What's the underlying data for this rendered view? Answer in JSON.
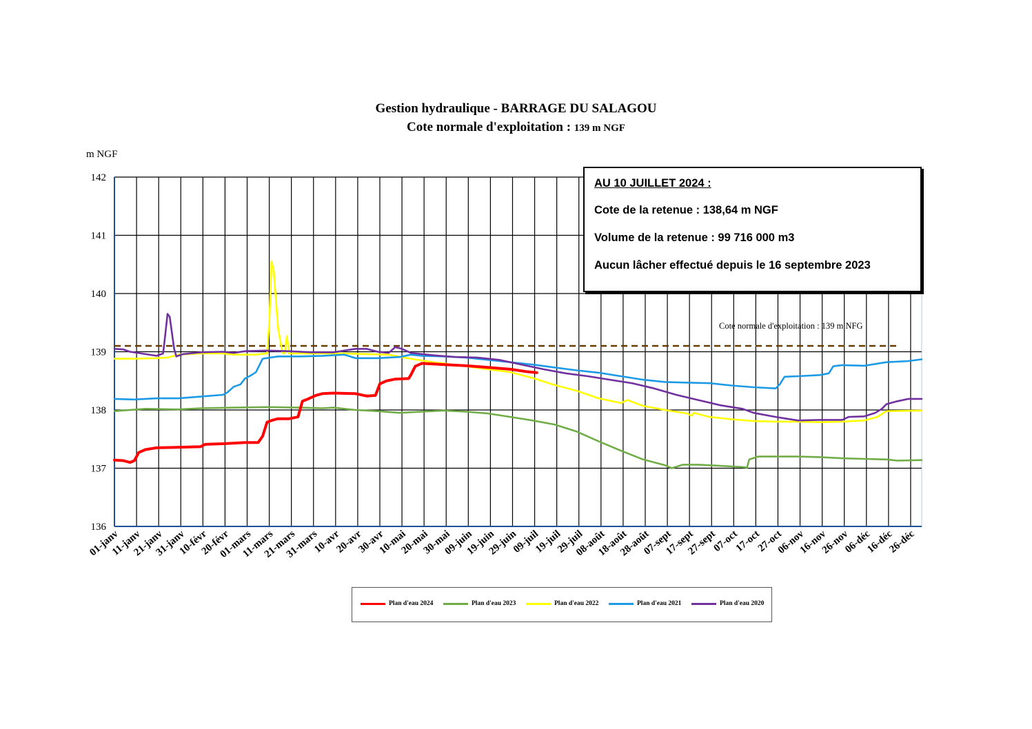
{
  "title": "Gestion hydraulique - BARRAGE DU SALAGOU",
  "subtitle_main": "Cote normale d'exploitation : ",
  "subtitle_unit": "139 m NGF",
  "info_box": {
    "heading": "AU 10 JUILLET 2024 :",
    "line1": "Cote de la retenue : 138,64 m NGF",
    "line2": "Volume de la retenue : 99 716 000 m3",
    "line3": "Aucun lâcher effectué depuis le 16 septembre 2023"
  },
  "chart_data": {
    "type": "line",
    "ylabel": "m NGF",
    "ylim": [
      136,
      142
    ],
    "yticks": [
      "136",
      "137",
      "138",
      "139",
      "140",
      "141",
      "142"
    ],
    "xlim": [
      1,
      366
    ],
    "grid": true,
    "legend_position": "bottom",
    "x_ticks": [
      {
        "day": 1,
        "label": "01-janv"
      },
      {
        "day": 11,
        "label": "11-janv"
      },
      {
        "day": 21,
        "label": "21-janv"
      },
      {
        "day": 31,
        "label": "31-janv"
      },
      {
        "day": 41,
        "label": "10-févr"
      },
      {
        "day": 51,
        "label": "20-févr"
      },
      {
        "day": 61,
        "label": "01-mars"
      },
      {
        "day": 71,
        "label": "11-mars"
      },
      {
        "day": 81,
        "label": "21-mars"
      },
      {
        "day": 91,
        "label": "31-mars"
      },
      {
        "day": 101,
        "label": "10-avr"
      },
      {
        "day": 111,
        "label": "20-avr"
      },
      {
        "day": 121,
        "label": "30-avr"
      },
      {
        "day": 131,
        "label": "10-mai"
      },
      {
        "day": 141,
        "label": "20-mai"
      },
      {
        "day": 151,
        "label": "30-mai"
      },
      {
        "day": 161,
        "label": "09-juin"
      },
      {
        "day": 171,
        "label": "19-juin"
      },
      {
        "day": 181,
        "label": "29-juin"
      },
      {
        "day": 191,
        "label": "09-juil"
      },
      {
        "day": 201,
        "label": "19-juil"
      },
      {
        "day": 211,
        "label": "29-juil"
      },
      {
        "day": 221,
        "label": "08-août"
      },
      {
        "day": 231,
        "label": "18-août"
      },
      {
        "day": 241,
        "label": "28-août"
      },
      {
        "day": 251,
        "label": "07-sept"
      },
      {
        "day": 261,
        "label": "17-sept"
      },
      {
        "day": 271,
        "label": "27-sept"
      },
      {
        "day": 281,
        "label": "07-oct"
      },
      {
        "day": 291,
        "label": "17-oct"
      },
      {
        "day": 301,
        "label": "27-oct"
      },
      {
        "day": 311,
        "label": "06-nov"
      },
      {
        "day": 321,
        "label": "16-nov"
      },
      {
        "day": 331,
        "label": "26-nov"
      },
      {
        "day": 341,
        "label": "06-déc"
      },
      {
        "day": 351,
        "label": "16-déc"
      },
      {
        "day": 361,
        "label": "26-déc"
      }
    ],
    "reference_line": {
      "y": 139.1,
      "label": "Cote normale d'exploitation : 139 m NFG",
      "color": "#6b3a00"
    },
    "series": [
      {
        "name": "Plan d'eau 2023",
        "color": "#70ad47",
        "points": [
          [
            1,
            137.98
          ],
          [
            15,
            138.02
          ],
          [
            30,
            138.01
          ],
          [
            40,
            138.03
          ],
          [
            55,
            138.04
          ],
          [
            70,
            138.05
          ],
          [
            85,
            138.04
          ],
          [
            95,
            138.03
          ],
          [
            100,
            138.04
          ],
          [
            105,
            138.02
          ],
          [
            110,
            138.0
          ],
          [
            120,
            137.98
          ],
          [
            130,
            137.95
          ],
          [
            140,
            137.97
          ],
          [
            150,
            137.99
          ],
          [
            160,
            137.97
          ],
          [
            170,
            137.94
          ],
          [
            180,
            137.88
          ],
          [
            190,
            137.82
          ],
          [
            200,
            137.75
          ],
          [
            210,
            137.63
          ],
          [
            220,
            137.46
          ],
          [
            230,
            137.3
          ],
          [
            240,
            137.15
          ],
          [
            250,
            137.05
          ],
          [
            253,
            137.0
          ],
          [
            258,
            137.06
          ],
          [
            265,
            137.06
          ],
          [
            275,
            137.04
          ],
          [
            285,
            137.02
          ],
          [
            287,
            137.01
          ],
          [
            288,
            137.15
          ],
          [
            292,
            137.2
          ],
          [
            300,
            137.2
          ],
          [
            310,
            137.2
          ],
          [
            320,
            137.19
          ],
          [
            330,
            137.17
          ],
          [
            340,
            137.16
          ],
          [
            350,
            137.15
          ],
          [
            355,
            137.13
          ],
          [
            366,
            137.14
          ]
        ]
      },
      {
        "name": "Plan d'eau 2022",
        "color": "#ffff00",
        "points": [
          [
            1,
            138.88
          ],
          [
            10,
            138.88
          ],
          [
            20,
            138.89
          ],
          [
            25,
            138.9
          ],
          [
            30,
            138.95
          ],
          [
            40,
            138.97
          ],
          [
            50,
            138.97
          ],
          [
            55,
            138.95
          ],
          [
            65,
            138.95
          ],
          [
            70,
            138.97
          ],
          [
            71,
            139.5
          ],
          [
            72,
            140.55
          ],
          [
            73,
            140.4
          ],
          [
            75,
            139.4
          ],
          [
            77,
            138.98
          ],
          [
            78,
            138.97
          ],
          [
            79,
            139.27
          ],
          [
            80,
            138.97
          ],
          [
            85,
            138.97
          ],
          [
            95,
            138.97
          ],
          [
            105,
            138.97
          ],
          [
            115,
            138.96
          ],
          [
            125,
            138.95
          ],
          [
            135,
            138.88
          ],
          [
            145,
            138.82
          ],
          [
            150,
            138.8
          ],
          [
            155,
            138.77
          ],
          [
            160,
            138.75
          ],
          [
            170,
            138.7
          ],
          [
            180,
            138.65
          ],
          [
            190,
            138.55
          ],
          [
            200,
            138.43
          ],
          [
            210,
            138.33
          ],
          [
            220,
            138.2
          ],
          [
            230,
            138.12
          ],
          [
            233,
            138.17
          ],
          [
            240,
            138.07
          ],
          [
            250,
            138.0
          ],
          [
            260,
            137.94
          ],
          [
            262,
            137.9
          ],
          [
            263,
            137.95
          ],
          [
            270,
            137.88
          ],
          [
            280,
            137.84
          ],
          [
            290,
            137.81
          ],
          [
            300,
            137.8
          ],
          [
            310,
            137.8
          ],
          [
            320,
            137.79
          ],
          [
            330,
            137.8
          ],
          [
            340,
            137.82
          ],
          [
            346,
            137.88
          ],
          [
            350,
            137.98
          ],
          [
            366,
            137.99
          ]
        ]
      },
      {
        "name": "Plan d'eau 2021",
        "color": "#1c9ae6",
        "points": [
          [
            1,
            138.19
          ],
          [
            10,
            138.18
          ],
          [
            20,
            138.2
          ],
          [
            30,
            138.2
          ],
          [
            40,
            138.23
          ],
          [
            50,
            138.26
          ],
          [
            52,
            138.3
          ],
          [
            55,
            138.4
          ],
          [
            58,
            138.44
          ],
          [
            60,
            138.54
          ],
          [
            63,
            138.6
          ],
          [
            65,
            138.65
          ],
          [
            68,
            138.88
          ],
          [
            75,
            138.92
          ],
          [
            85,
            138.92
          ],
          [
            95,
            138.93
          ],
          [
            105,
            138.95
          ],
          [
            110,
            138.89
          ],
          [
            120,
            138.89
          ],
          [
            130,
            138.91
          ],
          [
            135,
            138.95
          ],
          [
            140,
            138.93
          ],
          [
            150,
            138.92
          ],
          [
            160,
            138.9
          ],
          [
            170,
            138.86
          ],
          [
            180,
            138.82
          ],
          [
            190,
            138.78
          ],
          [
            200,
            138.73
          ],
          [
            210,
            138.68
          ],
          [
            220,
            138.64
          ],
          [
            230,
            138.58
          ],
          [
            240,
            138.52
          ],
          [
            250,
            138.48
          ],
          [
            260,
            138.47
          ],
          [
            270,
            138.46
          ],
          [
            280,
            138.42
          ],
          [
            290,
            138.39
          ],
          [
            300,
            138.37
          ],
          [
            302,
            138.45
          ],
          [
            304,
            138.57
          ],
          [
            310,
            138.58
          ],
          [
            320,
            138.6
          ],
          [
            324,
            138.63
          ],
          [
            326,
            138.75
          ],
          [
            330,
            138.77
          ],
          [
            340,
            138.76
          ],
          [
            350,
            138.82
          ],
          [
            360,
            138.84
          ],
          [
            366,
            138.87
          ]
        ]
      },
      {
        "name": "Plan d'eau 2020",
        "color": "#7030a0",
        "points": [
          [
            1,
            139.05
          ],
          [
            5,
            139.04
          ],
          [
            8,
            139.0
          ],
          [
            15,
            138.96
          ],
          [
            20,
            138.93
          ],
          [
            23,
            138.97
          ],
          [
            24,
            139.3
          ],
          [
            25,
            139.65
          ],
          [
            26,
            139.6
          ],
          [
            28,
            139.05
          ],
          [
            29,
            138.92
          ],
          [
            32,
            138.96
          ],
          [
            40,
            138.99
          ],
          [
            50,
            139.0
          ],
          [
            55,
            138.98
          ],
          [
            60,
            139.01
          ],
          [
            70,
            139.02
          ],
          [
            80,
            139.01
          ],
          [
            90,
            138.99
          ],
          [
            100,
            138.99
          ],
          [
            110,
            139.05
          ],
          [
            115,
            139.05
          ],
          [
            120,
            139.0
          ],
          [
            125,
            138.98
          ],
          [
            128,
            139.08
          ],
          [
            131,
            139.05
          ],
          [
            135,
            138.98
          ],
          [
            145,
            138.94
          ],
          [
            155,
            138.91
          ],
          [
            165,
            138.9
          ],
          [
            175,
            138.86
          ],
          [
            185,
            138.78
          ],
          [
            195,
            138.7
          ],
          [
            205,
            138.63
          ],
          [
            215,
            138.58
          ],
          [
            225,
            138.52
          ],
          [
            235,
            138.46
          ],
          [
            245,
            138.37
          ],
          [
            255,
            138.26
          ],
          [
            265,
            138.17
          ],
          [
            275,
            138.08
          ],
          [
            285,
            138.02
          ],
          [
            290,
            137.95
          ],
          [
            300,
            137.88
          ],
          [
            305,
            137.85
          ],
          [
            310,
            137.82
          ],
          [
            320,
            137.83
          ],
          [
            330,
            137.83
          ],
          [
            333,
            137.88
          ],
          [
            340,
            137.89
          ],
          [
            345,
            137.95
          ],
          [
            348,
            138.02
          ],
          [
            350,
            138.1
          ],
          [
            355,
            138.15
          ],
          [
            360,
            138.19
          ],
          [
            366,
            138.19
          ]
        ]
      },
      {
        "name": "Plan d'eau 2024",
        "color": "#ff0000",
        "width": 4,
        "points": [
          [
            1,
            137.14
          ],
          [
            5,
            137.13
          ],
          [
            8,
            137.1
          ],
          [
            10,
            137.13
          ],
          [
            12,
            137.27
          ],
          [
            15,
            137.32
          ],
          [
            20,
            137.35
          ],
          [
            30,
            137.36
          ],
          [
            40,
            137.37
          ],
          [
            42,
            137.41
          ],
          [
            50,
            137.42
          ],
          [
            60,
            137.44
          ],
          [
            66,
            137.44
          ],
          [
            68,
            137.55
          ],
          [
            70,
            137.79
          ],
          [
            72,
            137.82
          ],
          [
            75,
            137.85
          ],
          [
            80,
            137.85
          ],
          [
            84,
            137.88
          ],
          [
            86,
            138.15
          ],
          [
            88,
            138.18
          ],
          [
            92,
            138.25
          ],
          [
            95,
            138.28
          ],
          [
            100,
            138.29
          ],
          [
            110,
            138.28
          ],
          [
            115,
            138.24
          ],
          [
            119,
            138.25
          ],
          [
            121,
            138.45
          ],
          [
            124,
            138.5
          ],
          [
            128,
            138.53
          ],
          [
            134,
            138.54
          ],
          [
            135,
            138.6
          ],
          [
            137,
            138.75
          ],
          [
            140,
            138.8
          ],
          [
            145,
            138.79
          ],
          [
            150,
            138.78
          ],
          [
            160,
            138.76
          ],
          [
            170,
            138.73
          ],
          [
            180,
            138.7
          ],
          [
            187,
            138.66
          ],
          [
            192,
            138.64
          ]
        ]
      }
    ]
  }
}
